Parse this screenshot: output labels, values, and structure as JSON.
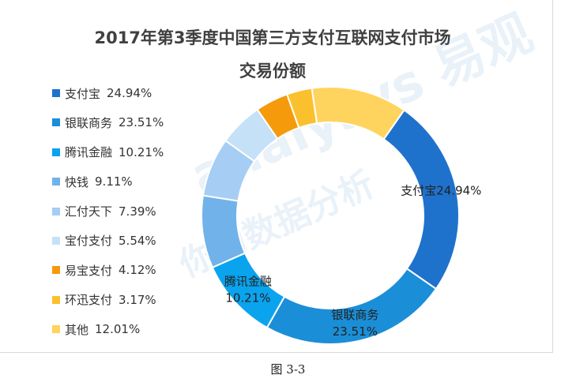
{
  "chart_data": {
    "type": "pie",
    "title_line1": "2017年第3季度中国第三方支付互联网支付市场",
    "title_line2": "交易份额",
    "legend_position": "left",
    "slices": [
      {
        "name": "支付宝",
        "value": 24.94,
        "label": "24.94%",
        "color": "#1f72cc"
      },
      {
        "name": "银联商务",
        "value": 23.51,
        "label": "23.51%",
        "color": "#1b8ed8"
      },
      {
        "name": "腾讯金融",
        "value": 10.21,
        "label": "10.21%",
        "color": "#0aa3ee"
      },
      {
        "name": "快钱",
        "value": 9.11,
        "label": "9.11%",
        "color": "#71b2ea"
      },
      {
        "name": "汇付天下",
        "value": 7.39,
        "label": "7.39%",
        "color": "#a6cdf4"
      },
      {
        "name": "宝付支付",
        "value": 5.54,
        "label": "5.54%",
        "color": "#c5e1f7"
      },
      {
        "name": "易宝支付",
        "value": 4.12,
        "label": "4.12%",
        "color": "#f59a0b"
      },
      {
        "name": "环迅支付",
        "value": 3.17,
        "label": "3.17%",
        "color": "#fbc02d"
      },
      {
        "name": "其他",
        "value": 12.01,
        "label": "12.01%",
        "color": "#ffd45e"
      }
    ],
    "data_labels": [
      {
        "slice": 0,
        "name": "支付宝",
        "value": "24.94%"
      },
      {
        "slice": 1,
        "name": "银联商务",
        "value": "23.51%"
      },
      {
        "slice": 2,
        "name": "腾讯金融",
        "value": "10.21%"
      }
    ]
  },
  "watermark": {
    "line1": "analysys 易观",
    "line2": "你的数据分析"
  },
  "caption": "图 3-3"
}
